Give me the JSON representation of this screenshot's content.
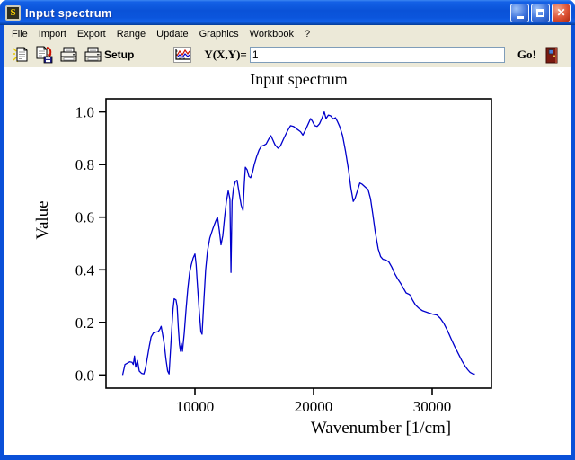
{
  "window": {
    "title": "Input spectrum"
  },
  "menu": {
    "items": [
      {
        "label": "File"
      },
      {
        "label": "Import"
      },
      {
        "label": "Export"
      },
      {
        "label": "Range"
      },
      {
        "label": "Update"
      },
      {
        "label": "Graphics"
      },
      {
        "label": "Workbook"
      },
      {
        "label": "?"
      }
    ]
  },
  "toolbar": {
    "setup_label": "Setup",
    "formula_label": "Y(X,Y)=",
    "formula_value": "1",
    "go_label": "Go!"
  },
  "chart_data": {
    "type": "line",
    "title": "Input spectrum",
    "xlabel": "Wavenumber [1/cm]",
    "ylabel": "Value",
    "xlim": [
      2500,
      35000
    ],
    "ylim": [
      -0.05,
      1.05
    ],
    "grid": false,
    "legend": "none",
    "line_color": "#0000cc",
    "x_ticks": [
      {
        "value": 10000,
        "label": "10000"
      },
      {
        "value": 20000,
        "label": "20000"
      },
      {
        "value": 30000,
        "label": "30000"
      }
    ],
    "y_ticks": [
      {
        "value": 0.0,
        "label": "0.0"
      },
      {
        "value": 0.2,
        "label": "0.2"
      },
      {
        "value": 0.4,
        "label": "0.4"
      },
      {
        "value": 0.6,
        "label": "0.6"
      },
      {
        "value": 0.8,
        "label": "0.8"
      },
      {
        "value": 1.0,
        "label": "1.0"
      }
    ],
    "series": [
      {
        "name": "Input spectrum",
        "points": [
          [
            3900,
            0.0
          ],
          [
            4000,
            0.02
          ],
          [
            4100,
            0.04
          ],
          [
            4300,
            0.045
          ],
          [
            4500,
            0.05
          ],
          [
            4700,
            0.048
          ],
          [
            4800,
            0.04
          ],
          [
            4900,
            0.072
          ],
          [
            5000,
            0.03
          ],
          [
            5150,
            0.055
          ],
          [
            5300,
            0.015
          ],
          [
            5500,
            0.006
          ],
          [
            5700,
            0.004
          ],
          [
            5850,
            0.03
          ],
          [
            6000,
            0.07
          ],
          [
            6150,
            0.11
          ],
          [
            6300,
            0.145
          ],
          [
            6500,
            0.16
          ],
          [
            6700,
            0.163
          ],
          [
            6900,
            0.165
          ],
          [
            7050,
            0.175
          ],
          [
            7150,
            0.185
          ],
          [
            7250,
            0.16
          ],
          [
            7400,
            0.12
          ],
          [
            7550,
            0.06
          ],
          [
            7700,
            0.015
          ],
          [
            7820,
            0.004
          ],
          [
            7950,
            0.1
          ],
          [
            8050,
            0.18
          ],
          [
            8150,
            0.25
          ],
          [
            8250,
            0.29
          ],
          [
            8400,
            0.285
          ],
          [
            8500,
            0.26
          ],
          [
            8600,
            0.18
          ],
          [
            8700,
            0.115
          ],
          [
            8780,
            0.09
          ],
          [
            8850,
            0.12
          ],
          [
            8950,
            0.09
          ],
          [
            9100,
            0.16
          ],
          [
            9250,
            0.25
          ],
          [
            9400,
            0.33
          ],
          [
            9550,
            0.39
          ],
          [
            9700,
            0.42
          ],
          [
            9850,
            0.445
          ],
          [
            10000,
            0.46
          ],
          [
            10100,
            0.42
          ],
          [
            10200,
            0.35
          ],
          [
            10350,
            0.25
          ],
          [
            10500,
            0.165
          ],
          [
            10600,
            0.155
          ],
          [
            10750,
            0.28
          ],
          [
            10900,
            0.4
          ],
          [
            11050,
            0.47
          ],
          [
            11250,
            0.52
          ],
          [
            11500,
            0.555
          ],
          [
            11750,
            0.585
          ],
          [
            11900,
            0.6
          ],
          [
            12050,
            0.55
          ],
          [
            12200,
            0.495
          ],
          [
            12350,
            0.53
          ],
          [
            12500,
            0.6
          ],
          [
            12650,
            0.66
          ],
          [
            12800,
            0.7
          ],
          [
            12950,
            0.67
          ],
          [
            13040,
            0.39
          ],
          [
            13130,
            0.66
          ],
          [
            13250,
            0.71
          ],
          [
            13400,
            0.735
          ],
          [
            13550,
            0.74
          ],
          [
            13700,
            0.7
          ],
          [
            13900,
            0.645
          ],
          [
            14050,
            0.625
          ],
          [
            14150,
            0.72
          ],
          [
            14250,
            0.79
          ],
          [
            14400,
            0.78
          ],
          [
            14550,
            0.755
          ],
          [
            14700,
            0.75
          ],
          [
            14850,
            0.77
          ],
          [
            15000,
            0.8
          ],
          [
            15200,
            0.83
          ],
          [
            15400,
            0.855
          ],
          [
            15600,
            0.87
          ],
          [
            15800,
            0.873
          ],
          [
            16000,
            0.878
          ],
          [
            16200,
            0.895
          ],
          [
            16400,
            0.91
          ],
          [
            16550,
            0.895
          ],
          [
            16750,
            0.875
          ],
          [
            17000,
            0.862
          ],
          [
            17200,
            0.87
          ],
          [
            17500,
            0.9
          ],
          [
            17800,
            0.928
          ],
          [
            18050,
            0.948
          ],
          [
            18300,
            0.945
          ],
          [
            18600,
            0.935
          ],
          [
            18900,
            0.925
          ],
          [
            19100,
            0.912
          ],
          [
            19300,
            0.93
          ],
          [
            19550,
            0.955
          ],
          [
            19750,
            0.975
          ],
          [
            19900,
            0.965
          ],
          [
            20100,
            0.948
          ],
          [
            20300,
            0.945
          ],
          [
            20500,
            0.955
          ],
          [
            20700,
            0.975
          ],
          [
            20900,
            1.0
          ],
          [
            21050,
            0.975
          ],
          [
            21250,
            0.988
          ],
          [
            21450,
            0.985
          ],
          [
            21650,
            0.973
          ],
          [
            21850,
            0.978
          ],
          [
            22000,
            0.965
          ],
          [
            22200,
            0.945
          ],
          [
            22450,
            0.91
          ],
          [
            22700,
            0.85
          ],
          [
            22950,
            0.78
          ],
          [
            23150,
            0.71
          ],
          [
            23350,
            0.66
          ],
          [
            23500,
            0.672
          ],
          [
            23700,
            0.7
          ],
          [
            23900,
            0.73
          ],
          [
            24100,
            0.725
          ],
          [
            24350,
            0.715
          ],
          [
            24600,
            0.705
          ],
          [
            24800,
            0.67
          ],
          [
            25000,
            0.61
          ],
          [
            25200,
            0.545
          ],
          [
            25450,
            0.48
          ],
          [
            25650,
            0.45
          ],
          [
            25850,
            0.44
          ],
          [
            26100,
            0.437
          ],
          [
            26350,
            0.43
          ],
          [
            26600,
            0.41
          ],
          [
            26850,
            0.385
          ],
          [
            27100,
            0.365
          ],
          [
            27350,
            0.348
          ],
          [
            27600,
            0.328
          ],
          [
            27800,
            0.312
          ],
          [
            28100,
            0.306
          ],
          [
            28350,
            0.285
          ],
          [
            28600,
            0.266
          ],
          [
            28900,
            0.253
          ],
          [
            29200,
            0.244
          ],
          [
            29600,
            0.238
          ],
          [
            30000,
            0.232
          ],
          [
            30400,
            0.228
          ],
          [
            30700,
            0.215
          ],
          [
            31000,
            0.195
          ],
          [
            31300,
            0.168
          ],
          [
            31600,
            0.138
          ],
          [
            31900,
            0.108
          ],
          [
            32200,
            0.082
          ],
          [
            32500,
            0.055
          ],
          [
            32800,
            0.032
          ],
          [
            33000,
            0.02
          ],
          [
            33200,
            0.01
          ],
          [
            33400,
            0.005
          ],
          [
            33600,
            0.003
          ]
        ]
      }
    ]
  }
}
